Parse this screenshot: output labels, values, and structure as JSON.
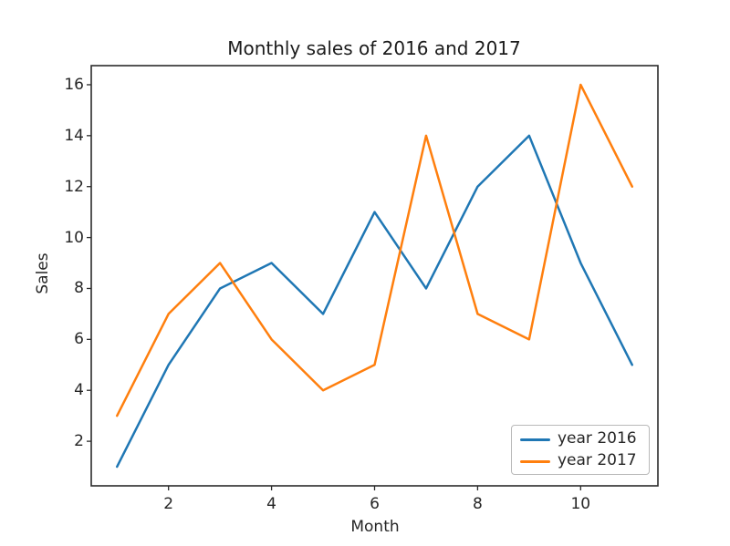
{
  "figure": {
    "background_color": "#ffffff",
    "text_color": "#262626",
    "spine_color": "#2b2b2b",
    "legend_border_color": "#b9b9b9"
  },
  "chart_data": {
    "type": "line",
    "title": "Monthly sales of 2016 and 2017",
    "xlabel": "Month",
    "ylabel": "Sales",
    "x": [
      1,
      2,
      3,
      4,
      5,
      6,
      7,
      8,
      9,
      10,
      11
    ],
    "series": [
      {
        "name": "year 2016",
        "color": "#1f77b4",
        "values": [
          1,
          5,
          8,
          9,
          7,
          11,
          8,
          12,
          14,
          9,
          5
        ]
      },
      {
        "name": "year 2017",
        "color": "#ff7f0e",
        "values": [
          3,
          7,
          9,
          6,
          4,
          5,
          14,
          7,
          6,
          16,
          12
        ]
      }
    ],
    "x_ticks": [
      2,
      4,
      6,
      8,
      10
    ],
    "y_ticks": [
      2,
      4,
      6,
      8,
      10,
      12,
      14,
      16
    ],
    "xlim": [
      0.5,
      11.5
    ],
    "ylim": [
      0.25,
      16.75
    ],
    "grid": false,
    "legend_position": "lower right"
  }
}
